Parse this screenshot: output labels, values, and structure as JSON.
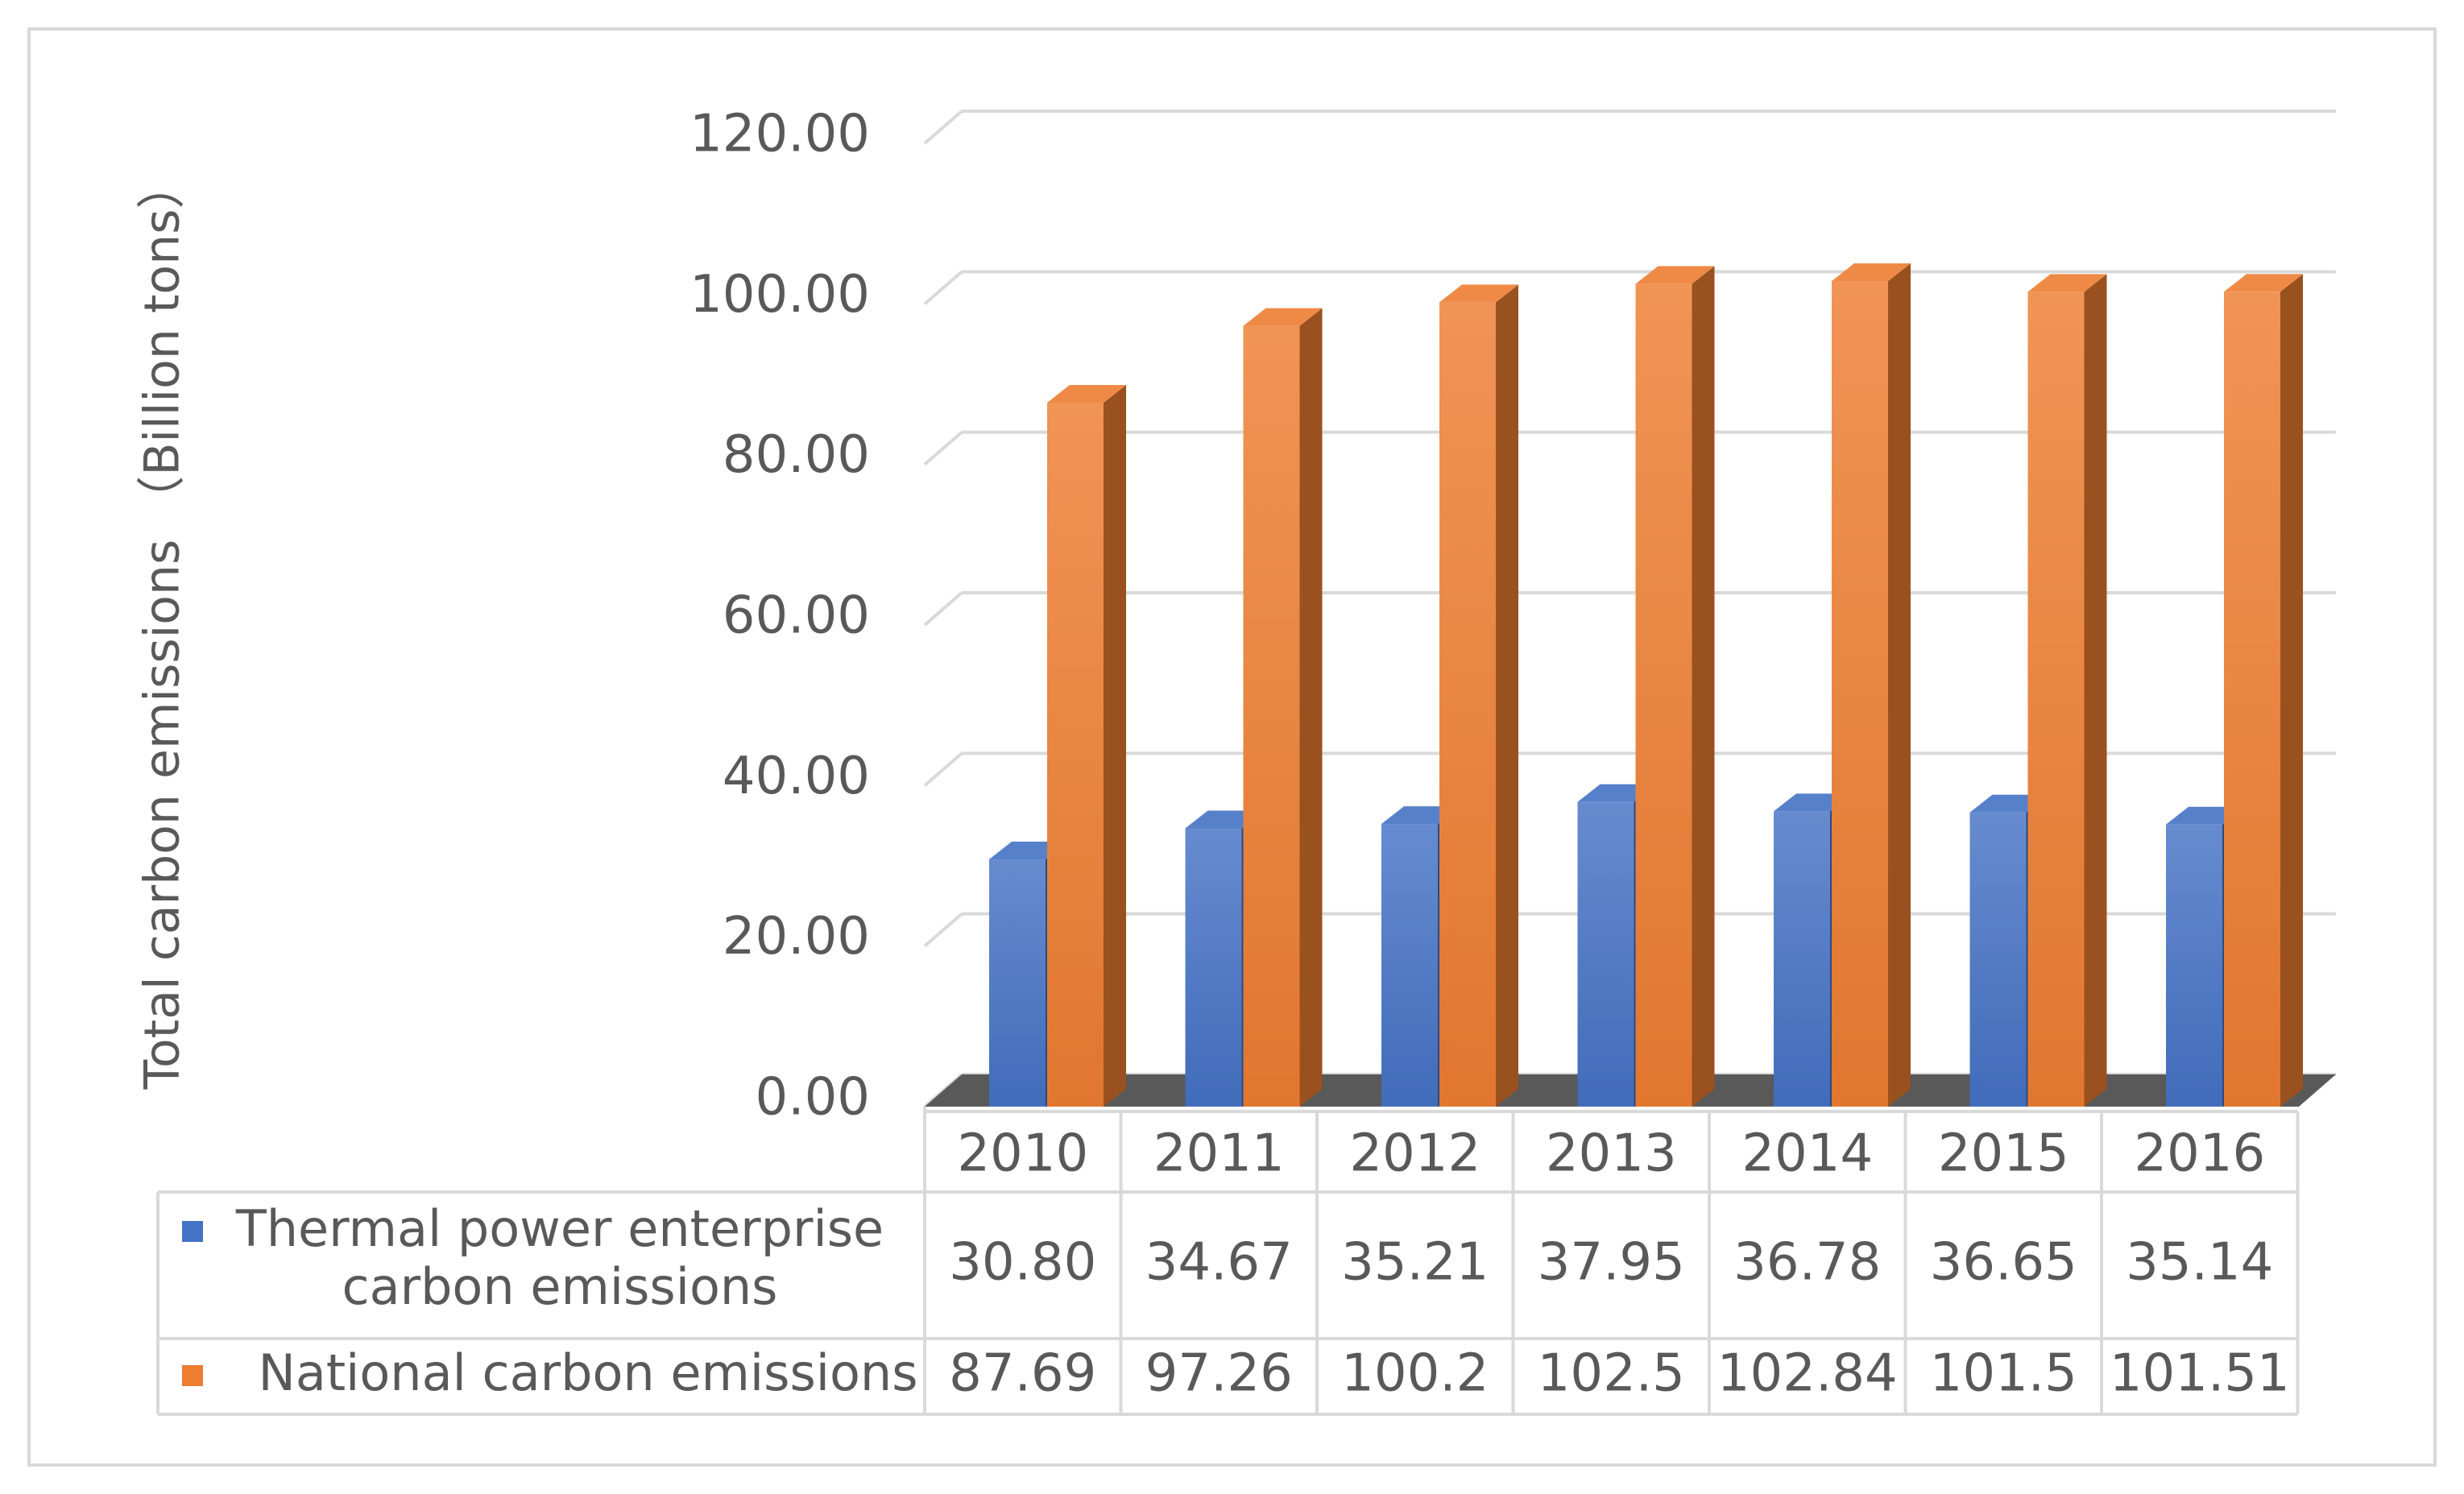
{
  "chart_data": {
    "type": "bar",
    "style": "3d-clustered-column-with-data-table",
    "title": "",
    "xlabel": "",
    "ylabel": "Total carbon emissions （Billion tons）",
    "ylim": [
      0,
      120
    ],
    "yticks": [
      "0.00",
      "20.00",
      "40.00",
      "60.00",
      "80.00",
      "100.00",
      "120.00"
    ],
    "grid": true,
    "legend": "data-table",
    "categories": [
      "2010",
      "2011",
      "2012",
      "2013",
      "2014",
      "2015",
      "2016"
    ],
    "series": [
      {
        "name_lines": [
          "Thermal power enterprise",
          "carbon emissions"
        ],
        "color": "#4472c4",
        "values": [
          30.8,
          34.67,
          35.21,
          37.95,
          36.78,
          36.65,
          35.14
        ],
        "labels": [
          "30.80",
          "34.67",
          "35.21",
          "37.95",
          "36.78",
          "36.65",
          "35.14"
        ]
      },
      {
        "name_lines": [
          "National carbon emissions"
        ],
        "color": "#ed7d31",
        "values": [
          87.69,
          97.26,
          100.2,
          102.5,
          102.84,
          101.5,
          101.51
        ],
        "labels": [
          "87.69",
          "97.26",
          "100.2",
          "102.5",
          "102.84",
          "101.5",
          "101.51"
        ]
      }
    ]
  }
}
